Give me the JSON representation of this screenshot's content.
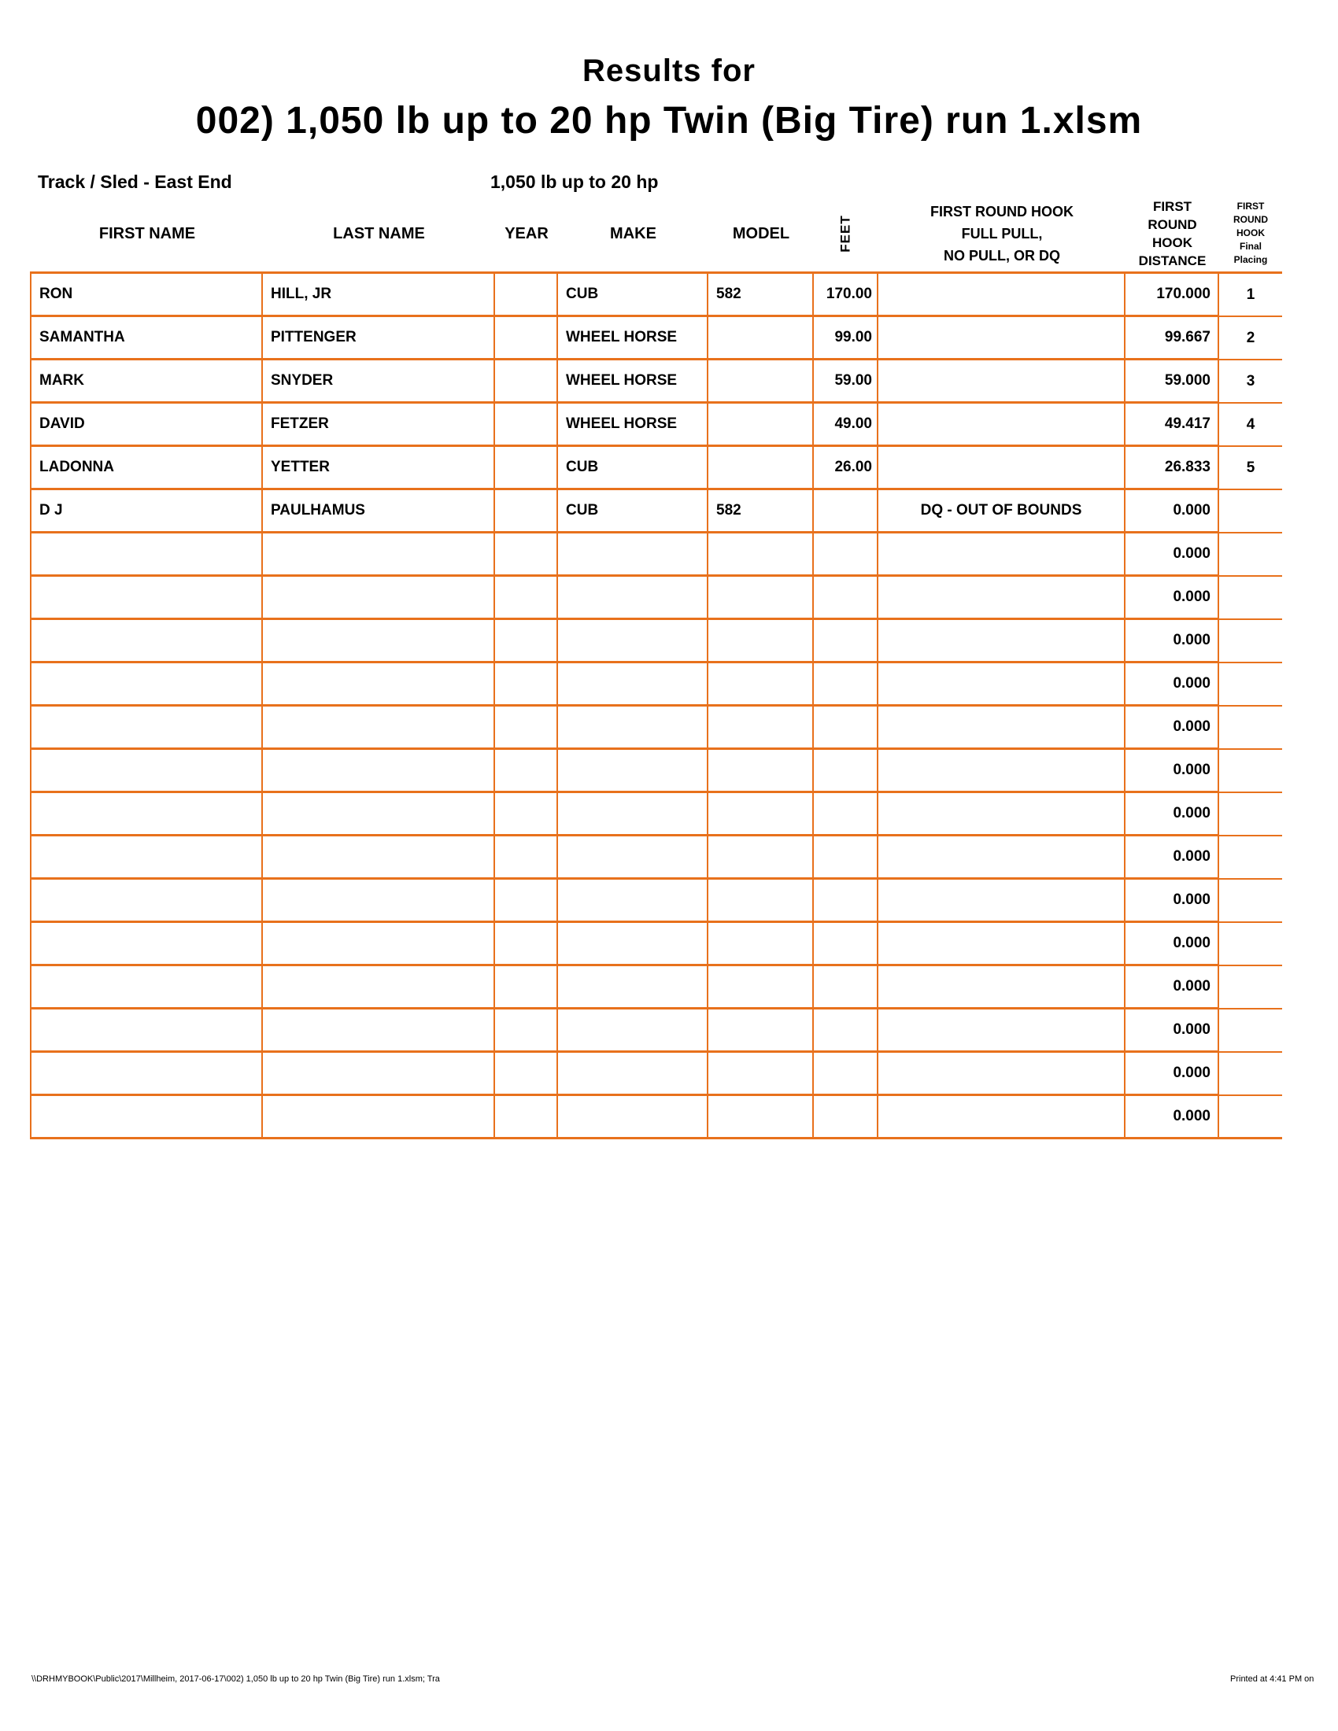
{
  "colors": {
    "grid": "#E8711C",
    "text": "#000000",
    "background": "#FFFFFF"
  },
  "header": {
    "title_line1": "Results for",
    "title_line2": "002) 1,050 lb up to 20 hp Twin (Big Tire) run 1.xlsm",
    "track_label": "Track / Sled - East End",
    "class_label": "1,050 lb up to 20 hp"
  },
  "table": {
    "columns": [
      {
        "key": "first",
        "label": "FIRST NAME"
      },
      {
        "key": "last",
        "label": "LAST NAME"
      },
      {
        "key": "year",
        "label": "YEAR"
      },
      {
        "key": "make",
        "label": "MAKE"
      },
      {
        "key": "model",
        "label": "MODEL"
      },
      {
        "key": "feet",
        "label": "FEET"
      },
      {
        "key": "note",
        "label": "FIRST ROUND HOOK\nFULL PULL,\nNO PULL, OR DQ"
      },
      {
        "key": "dist",
        "label": "FIRST\nROUND\nHOOK\nDISTANCE"
      },
      {
        "key": "place",
        "label": "FIRST\nROUND\nHOOK\nFinal\nPlacing"
      }
    ],
    "rows": [
      {
        "first": "RON",
        "last": "HILL, JR",
        "year": "",
        "make": "CUB",
        "model": "582",
        "feet": "170.00",
        "note": "",
        "dist": "170.000",
        "place": "1"
      },
      {
        "first": "SAMANTHA",
        "last": "PITTENGER",
        "year": "",
        "make": "WHEEL HORSE",
        "model": "",
        "feet": "99.00",
        "note": "",
        "dist": "99.667",
        "place": "2"
      },
      {
        "first": "MARK",
        "last": "SNYDER",
        "year": "",
        "make": "WHEEL HORSE",
        "model": "",
        "feet": "59.00",
        "note": "",
        "dist": "59.000",
        "place": "3"
      },
      {
        "first": "DAVID",
        "last": "FETZER",
        "year": "",
        "make": "WHEEL HORSE",
        "model": "",
        "feet": "49.00",
        "note": "",
        "dist": "49.417",
        "place": "4"
      },
      {
        "first": "LADONNA",
        "last": "YETTER",
        "year": "",
        "make": "CUB",
        "model": "",
        "feet": "26.00",
        "note": "",
        "dist": "26.833",
        "place": "5"
      },
      {
        "first": "D J",
        "last": "PAULHAMUS",
        "year": "",
        "make": "CUB",
        "model": "582",
        "feet": "",
        "note": "DQ - OUT OF BOUNDS",
        "dist": "0.000",
        "place": ""
      },
      {
        "first": "",
        "last": "",
        "year": "",
        "make": "",
        "model": "",
        "feet": "",
        "note": "",
        "dist": "0.000",
        "place": ""
      },
      {
        "first": "",
        "last": "",
        "year": "",
        "make": "",
        "model": "",
        "feet": "",
        "note": "",
        "dist": "0.000",
        "place": ""
      },
      {
        "first": "",
        "last": "",
        "year": "",
        "make": "",
        "model": "",
        "feet": "",
        "note": "",
        "dist": "0.000",
        "place": ""
      },
      {
        "first": "",
        "last": "",
        "year": "",
        "make": "",
        "model": "",
        "feet": "",
        "note": "",
        "dist": "0.000",
        "place": ""
      },
      {
        "first": "",
        "last": "",
        "year": "",
        "make": "",
        "model": "",
        "feet": "",
        "note": "",
        "dist": "0.000",
        "place": ""
      },
      {
        "first": "",
        "last": "",
        "year": "",
        "make": "",
        "model": "",
        "feet": "",
        "note": "",
        "dist": "0.000",
        "place": ""
      },
      {
        "first": "",
        "last": "",
        "year": "",
        "make": "",
        "model": "",
        "feet": "",
        "note": "",
        "dist": "0.000",
        "place": ""
      },
      {
        "first": "",
        "last": "",
        "year": "",
        "make": "",
        "model": "",
        "feet": "",
        "note": "",
        "dist": "0.000",
        "place": ""
      },
      {
        "first": "",
        "last": "",
        "year": "",
        "make": "",
        "model": "",
        "feet": "",
        "note": "",
        "dist": "0.000",
        "place": ""
      },
      {
        "first": "",
        "last": "",
        "year": "",
        "make": "",
        "model": "",
        "feet": "",
        "note": "",
        "dist": "0.000",
        "place": ""
      },
      {
        "first": "",
        "last": "",
        "year": "",
        "make": "",
        "model": "",
        "feet": "",
        "note": "",
        "dist": "0.000",
        "place": ""
      },
      {
        "first": "",
        "last": "",
        "year": "",
        "make": "",
        "model": "",
        "feet": "",
        "note": "",
        "dist": "0.000",
        "place": ""
      },
      {
        "first": "",
        "last": "",
        "year": "",
        "make": "",
        "model": "",
        "feet": "",
        "note": "",
        "dist": "0.000",
        "place": ""
      },
      {
        "first": "",
        "last": "",
        "year": "",
        "make": "",
        "model": "",
        "feet": "",
        "note": "",
        "dist": "0.000",
        "place": ""
      }
    ]
  },
  "footer": {
    "left": "\\\\DRHMYBOOK\\Public\\2017\\Millheim, 2017-06-17\\002) 1,050 lb up to 20 hp Twin (Big Tire) run 1.xlsm;  Tra",
    "right": "Printed at 4:41 PM on"
  }
}
